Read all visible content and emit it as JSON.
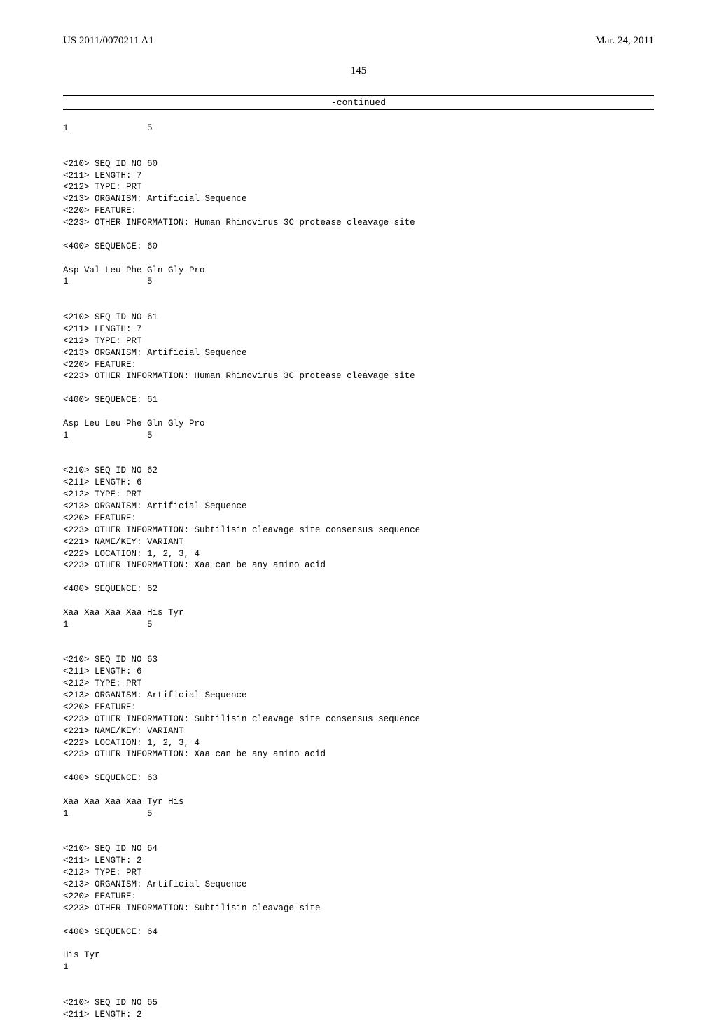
{
  "header": {
    "left": "US 2011/0070211 A1",
    "right": "Mar. 24, 2011"
  },
  "page_number": "145",
  "continued": "-continued",
  "blocks": [
    "1               5",
    "",
    "",
    "<210> SEQ ID NO 60",
    "<211> LENGTH: 7",
    "<212> TYPE: PRT",
    "<213> ORGANISM: Artificial Sequence",
    "<220> FEATURE:",
    "<223> OTHER INFORMATION: Human Rhinovirus 3C protease cleavage site",
    "",
    "<400> SEQUENCE: 60",
    "",
    "Asp Val Leu Phe Gln Gly Pro",
    "1               5",
    "",
    "",
    "<210> SEQ ID NO 61",
    "<211> LENGTH: 7",
    "<212> TYPE: PRT",
    "<213> ORGANISM: Artificial Sequence",
    "<220> FEATURE:",
    "<223> OTHER INFORMATION: Human Rhinovirus 3C protease cleavage site",
    "",
    "<400> SEQUENCE: 61",
    "",
    "Asp Leu Leu Phe Gln Gly Pro",
    "1               5",
    "",
    "",
    "<210> SEQ ID NO 62",
    "<211> LENGTH: 6",
    "<212> TYPE: PRT",
    "<213> ORGANISM: Artificial Sequence",
    "<220> FEATURE:",
    "<223> OTHER INFORMATION: Subtilisin cleavage site consensus sequence",
    "<221> NAME/KEY: VARIANT",
    "<222> LOCATION: 1, 2, 3, 4",
    "<223> OTHER INFORMATION: Xaa can be any amino acid",
    "",
    "<400> SEQUENCE: 62",
    "",
    "Xaa Xaa Xaa Xaa His Tyr",
    "1               5",
    "",
    "",
    "<210> SEQ ID NO 63",
    "<211> LENGTH: 6",
    "<212> TYPE: PRT",
    "<213> ORGANISM: Artificial Sequence",
    "<220> FEATURE:",
    "<223> OTHER INFORMATION: Subtilisin cleavage site consensus sequence",
    "<221> NAME/KEY: VARIANT",
    "<222> LOCATION: 1, 2, 3, 4",
    "<223> OTHER INFORMATION: Xaa can be any amino acid",
    "",
    "<400> SEQUENCE: 63",
    "",
    "Xaa Xaa Xaa Xaa Tyr His",
    "1               5",
    "",
    "",
    "<210> SEQ ID NO 64",
    "<211> LENGTH: 2",
    "<212> TYPE: PRT",
    "<213> ORGANISM: Artificial Sequence",
    "<220> FEATURE:",
    "<223> OTHER INFORMATION: Subtilisin cleavage site",
    "",
    "<400> SEQUENCE: 64",
    "",
    "His Tyr",
    "1",
    "",
    "",
    "<210> SEQ ID NO 65",
    "<211> LENGTH: 2"
  ]
}
